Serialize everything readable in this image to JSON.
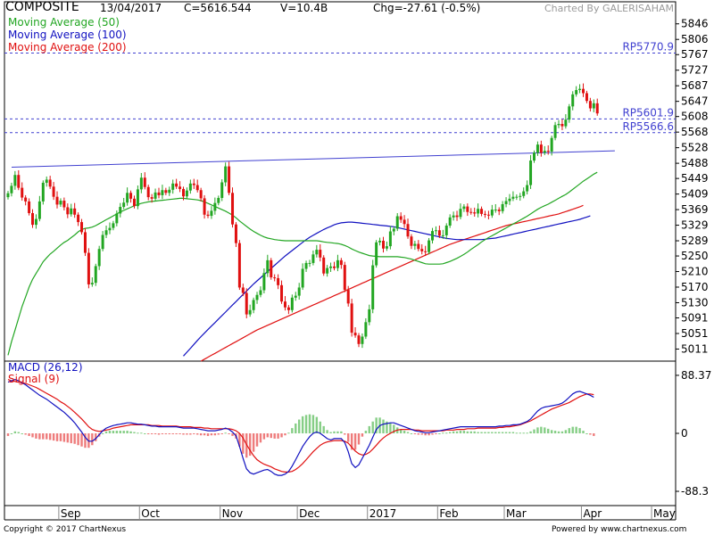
{
  "header": {
    "symbol": "COMPOSITE",
    "date": "13/04/2017",
    "close": "C=5616.544",
    "volume": "V=10.4B",
    "change": "Chg=-27.61 (-0.5%)",
    "credit": "Charted By GALERISAHAM"
  },
  "footer": {
    "copyright": "Copyright © 2017 ChartNexus",
    "powered": "Powered by www.chartnexus.com"
  },
  "colors": {
    "up": "#22a622",
    "down": "#e01010",
    "ma50": "#22a622",
    "ma100": "#1010c0",
    "ma200": "#e01010",
    "trend": "#4040d0",
    "ref": "#4040d0",
    "macd": "#1010c0",
    "signal": "#e01010"
  },
  "chart_data": {
    "type": "candlestick",
    "price_axis": {
      "ticks": [
        "5846",
        "5806",
        "5767",
        "5727",
        "5687",
        "5647",
        "5608",
        "5568",
        "5528",
        "5488",
        "5449",
        "5409",
        "5369",
        "5329",
        "5289",
        "5250",
        "5210",
        "5170",
        "5130",
        "5091",
        "5051",
        "5011"
      ],
      "range": [
        4980,
        5866
      ]
    },
    "x_axis": {
      "labels": [
        "Sep",
        "Oct",
        "Nov",
        "Dec",
        "2017",
        "Feb",
        "Mar",
        "Apr",
        "May"
      ],
      "label_index": [
        16,
        39,
        62,
        84,
        104,
        124,
        143,
        165,
        185
      ]
    },
    "legend": [
      {
        "label": "Moving Average (50)",
        "color": "#22a622"
      },
      {
        "label": "Moving Average (100)",
        "color": "#1010c0"
      },
      {
        "label": "Moving Average (200)",
        "color": "#e01010"
      }
    ],
    "reference_lines": [
      {
        "label": "RP5770.9",
        "value": 5770.9
      },
      {
        "label": "RP5601.9",
        "value": 5601.9
      },
      {
        "label": "RP5566.6",
        "value": 5566.6
      }
    ],
    "trendline": {
      "from": {
        "index": 0,
        "value": 5478
      },
      "to": {
        "index": 173,
        "value": 5520
      }
    },
    "close": [
      5411,
      5430,
      5458,
      5425,
      5400,
      5390,
      5360,
      5330,
      5345,
      5390,
      5438,
      5446,
      5428,
      5402,
      5382,
      5392,
      5375,
      5357,
      5372,
      5356,
      5337,
      5311,
      5258,
      5177,
      5181,
      5224,
      5268,
      5304,
      5316,
      5322,
      5334,
      5359,
      5376,
      5387,
      5412,
      5397,
      5378,
      5421,
      5451,
      5427,
      5401,
      5397,
      5413,
      5406,
      5419,
      5412,
      5420,
      5436,
      5428,
      5422,
      5403,
      5418,
      5436,
      5432,
      5419,
      5398,
      5356,
      5353,
      5366,
      5386,
      5399,
      5439,
      5480,
      5412,
      5331,
      5283,
      5169,
      5155,
      5100,
      5111,
      5137,
      5150,
      5162,
      5206,
      5239,
      5195,
      5193,
      5175,
      5133,
      5118,
      5111,
      5143,
      5148,
      5169,
      5217,
      5232,
      5232,
      5254,
      5266,
      5246,
      5205,
      5219,
      5223,
      5219,
      5239,
      5227,
      5163,
      5128,
      5053,
      5046,
      5024,
      5043,
      5080,
      5113,
      5226,
      5285,
      5289,
      5269,
      5275,
      5313,
      5320,
      5352,
      5343,
      5332,
      5300,
      5276,
      5281,
      5268,
      5262,
      5260,
      5290,
      5314,
      5316,
      5302,
      5303,
      5328,
      5349,
      5354,
      5350,
      5371,
      5377,
      5363,
      5362,
      5359,
      5371,
      5358,
      5356,
      5354,
      5369,
      5369,
      5365,
      5383,
      5391,
      5397,
      5402,
      5402,
      5404,
      5416,
      5432,
      5495,
      5515,
      5536,
      5515,
      5520,
      5518,
      5553,
      5586,
      5589,
      5583,
      5600,
      5634,
      5665,
      5676,
      5679,
      5668,
      5648,
      5629,
      5642,
      5616
    ],
    "ma50": [
      4995,
      5030,
      5060,
      5090,
      5120,
      5145,
      5170,
      5190,
      5205,
      5220,
      5235,
      5245,
      5255,
      5262,
      5270,
      5278,
      5285,
      5290,
      5297,
      5304,
      5312,
      5318,
      5321,
      5322,
      5324,
      5328,
      5333,
      5338,
      5343,
      5348,
      5353,
      5358,
      5363,
      5367,
      5371,
      5375,
      5379,
      5382,
      5385,
      5387,
      5389,
      5390,
      5391,
      5392,
      5393,
      5394,
      5395,
      5396,
      5397,
      5398,
      5398,
      5397,
      5396,
      5395,
      5394,
      5392,
      5389,
      5385,
      5381,
      5377,
      5373,
      5369,
      5365,
      5360,
      5355,
      5348,
      5340,
      5333,
      5326,
      5319,
      5313,
      5308,
      5303,
      5299,
      5296,
      5294,
      5292,
      5291,
      5290,
      5289,
      5289,
      5289,
      5289,
      5289,
      5289,
      5289,
      5289,
      5289,
      5289,
      5288,
      5286,
      5285,
      5284,
      5283,
      5282,
      5280,
      5277,
      5273,
      5268,
      5264,
      5260,
      5257,
      5254,
      5251,
      5250,
      5249,
      5248,
      5248,
      5248,
      5248,
      5248,
      5248,
      5247,
      5246,
      5244,
      5242,
      5239,
      5236,
      5233,
      5230,
      5229,
      5229,
      5229,
      5229,
      5230,
      5233,
      5236,
      5240,
      5244,
      5249,
      5254,
      5260,
      5267,
      5273,
      5279,
      5286,
      5292,
      5297,
      5302,
      5307,
      5312,
      5317,
      5322,
      5327,
      5332,
      5337,
      5342,
      5347,
      5352,
      5358,
      5364,
      5370,
      5375,
      5379,
      5383,
      5388,
      5393,
      5398,
      5403,
      5408,
      5414,
      5421,
      5428,
      5435,
      5442,
      5448,
      5454,
      5460,
      5465
    ],
    "ma100": [
      null,
      null,
      null,
      null,
      null,
      null,
      null,
      null,
      null,
      null,
      null,
      null,
      null,
      null,
      null,
      null,
      null,
      null,
      null,
      null,
      null,
      null,
      null,
      null,
      null,
      null,
      null,
      null,
      null,
      null,
      null,
      null,
      null,
      null,
      null,
      null,
      null,
      null,
      null,
      null,
      null,
      null,
      null,
      null,
      null,
      null,
      null,
      null,
      null,
      null,
      4993,
      5003,
      5013,
      5023,
      5033,
      5043,
      5052,
      5061,
      5070,
      5079,
      5088,
      5097,
      5106,
      5115,
      5124,
      5133,
      5142,
      5151,
      5160,
      5169,
      5178,
      5186,
      5194,
      5202,
      5210,
      5218,
      5226,
      5234,
      5242,
      5250,
      5257,
      5264,
      5271,
      5278,
      5285,
      5292,
      5298,
      5303,
      5308,
      5313,
      5318,
      5322,
      5326,
      5330,
      5333,
      5335,
      5336,
      5337,
      5337,
      5336,
      5335,
      5334,
      5333,
      5332,
      5331,
      5330,
      5329,
      5328,
      5327,
      5326,
      5325,
      5323,
      5321,
      5319,
      5317,
      5315,
      5313,
      5311,
      5309,
      5307,
      5305,
      5303,
      5301,
      5299,
      5297,
      5295,
      5294,
      5293,
      5292,
      5292,
      5292,
      5292,
      5292,
      5292,
      5292,
      5292,
      5293,
      5294,
      5295,
      5296,
      5298,
      5300,
      5302,
      5304,
      5306,
      5308,
      5310,
      5312,
      5314,
      5316,
      5318,
      5320,
      5322,
      5324,
      5326,
      5328,
      5330,
      5332,
      5334,
      5336,
      5338,
      5340,
      5342,
      5344,
      5347,
      5350,
      5353
    ],
    "ma200": [
      null,
      null,
      null,
      null,
      null,
      null,
      null,
      null,
      null,
      null,
      null,
      null,
      null,
      null,
      null,
      null,
      null,
      null,
      null,
      null,
      null,
      null,
      null,
      null,
      null,
      null,
      null,
      null,
      null,
      null,
      null,
      null,
      null,
      null,
      null,
      null,
      null,
      null,
      null,
      null,
      null,
      null,
      null,
      null,
      null,
      null,
      null,
      null,
      null,
      null,
      null,
      null,
      null,
      null,
      null,
      4980,
      4985,
      4990,
      4995,
      5000,
      5005,
      5010,
      5015,
      5020,
      5025,
      5030,
      5035,
      5040,
      5045,
      5050,
      5055,
      5060,
      5064,
      5068,
      5072,
      5076,
      5080,
      5084,
      5088,
      5092,
      5096,
      5100,
      5104,
      5108,
      5112,
      5116,
      5120,
      5124,
      5128,
      5132,
      5136,
      5140,
      5144,
      5148,
      5152,
      5156,
      5160,
      5164,
      5168,
      5172,
      5176,
      5180,
      5184,
      5188,
      5192,
      5196,
      5200,
      5204,
      5208,
      5212,
      5216,
      5220,
      5224,
      5228,
      5232,
      5236,
      5240,
      5244,
      5248,
      5252,
      5256,
      5260,
      5264,
      5268,
      5272,
      5276,
      5280,
      5283,
      5286,
      5289,
      5292,
      5295,
      5298,
      5301,
      5304,
      5307,
      5310,
      5313,
      5316,
      5319,
      5322,
      5325,
      5328,
      5330,
      5332,
      5334,
      5336,
      5338,
      5340,
      5342,
      5344,
      5346,
      5348,
      5350,
      5352,
      5354,
      5356,
      5358,
      5361,
      5364,
      5367,
      5370,
      5373,
      5376,
      5380
    ],
    "macd_panel": {
      "legend": [
        {
          "label": "MACD (26,12)",
          "color": "#1010c0"
        },
        {
          "label": "Signal (9)",
          "color": "#e01010"
        }
      ],
      "ticks": [
        "88.37",
        "0",
        "-88.3"
      ],
      "range": [
        -110,
        110
      ],
      "macd": [
        78,
        80,
        82,
        80,
        77,
        74,
        70,
        66,
        62,
        58,
        55,
        52,
        48,
        44,
        40,
        36,
        32,
        27,
        22,
        16,
        9,
        2,
        -6,
        -12,
        -12,
        -8,
        -2,
        4,
        8,
        10,
        12,
        13,
        14,
        15,
        16,
        16,
        15,
        14,
        14,
        13,
        12,
        11,
        11,
        10,
        10,
        10,
        10,
        10,
        10,
        9,
        8,
        8,
        8,
        8,
        7,
        6,
        5,
        4,
        4,
        4,
        5,
        6,
        8,
        6,
        2,
        -4,
        -20,
        -38,
        -54,
        -60,
        -62,
        -60,
        -58,
        -56,
        -55,
        -58,
        -62,
        -64,
        -64,
        -62,
        -58,
        -50,
        -40,
        -30,
        -20,
        -12,
        -5,
        0,
        2,
        0,
        -4,
        -8,
        -10,
        -8,
        -8,
        -8,
        -14,
        -28,
        -46,
        -52,
        -48,
        -38,
        -28,
        -18,
        -6,
        6,
        12,
        14,
        15,
        16,
        16,
        14,
        12,
        10,
        8,
        6,
        4,
        3,
        2,
        1,
        1,
        2,
        3,
        4,
        5,
        6,
        7,
        8,
        9,
        10,
        10,
        10,
        10,
        10,
        10,
        10,
        10,
        10,
        10,
        10,
        11,
        11,
        12,
        12,
        13,
        13,
        14,
        16,
        18,
        22,
        28,
        34,
        38,
        40,
        41,
        42,
        43,
        44,
        46,
        50,
        55,
        60,
        63,
        64,
        62,
        60,
        58,
        55
      ],
      "signal": [
        82,
        80,
        79,
        78,
        77,
        76,
        74,
        72,
        70,
        67,
        64,
        61,
        58,
        55,
        52,
        48,
        45,
        41,
        37,
        32,
        27,
        22,
        16,
        10,
        6,
        4,
        3,
        4,
        5,
        6,
        8,
        9,
        10,
        11,
        12,
        13,
        13,
        13,
        13,
        13,
        13,
        12,
        12,
        12,
        11,
        11,
        11,
        11,
        11,
        10,
        10,
        10,
        10,
        9,
        9,
        9,
        8,
        8,
        7,
        7,
        7,
        7,
        7,
        7,
        6,
        4,
        0,
        -7,
        -17,
        -26,
        -34,
        -40,
        -44,
        -47,
        -49,
        -51,
        -54,
        -56,
        -58,
        -59,
        -59,
        -58,
        -55,
        -51,
        -46,
        -40,
        -34,
        -28,
        -23,
        -18,
        -15,
        -13,
        -12,
        -11,
        -11,
        -11,
        -12,
        -15,
        -21,
        -27,
        -31,
        -33,
        -32,
        -29,
        -24,
        -18,
        -12,
        -7,
        -3,
        0,
        3,
        5,
        6,
        6,
        6,
        6,
        5,
        5,
        4,
        4,
        4,
        4,
        4,
        4,
        4,
        5,
        5,
        5,
        6,
        6,
        6,
        7,
        7,
        7,
        8,
        8,
        8,
        8,
        8,
        8,
        9,
        9,
        10,
        10,
        11,
        12,
        13,
        15,
        17,
        19,
        22,
        25,
        28,
        31,
        34,
        37,
        39,
        41,
        43,
        45,
        47,
        50,
        53,
        56,
        58,
        60,
        60,
        59
      ]
    }
  }
}
